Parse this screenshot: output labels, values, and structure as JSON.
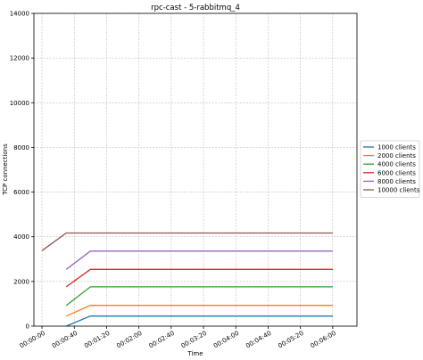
{
  "chart_data": {
    "type": "line",
    "title": "rpc-cast - 5-rabbitmq_4",
    "xlabel": "Time",
    "ylabel": "TCP connections",
    "xlim": [
      -10,
      390
    ],
    "ylim": [
      0,
      14000
    ],
    "x_ticks": [
      0,
      40,
      80,
      120,
      160,
      200,
      240,
      280,
      320,
      360
    ],
    "x_tick_labels": [
      "00:00:00",
      "00:00:40",
      "00:01:20",
      "00:02:00",
      "00:02:40",
      "00:03:20",
      "00:04:00",
      "00:04:40",
      "00:05:20",
      "00:06:00"
    ],
    "y_ticks": [
      0,
      2000,
      4000,
      6000,
      8000,
      10000,
      12000,
      14000
    ],
    "y_tick_labels": [
      "0",
      "2000",
      "4000",
      "6000",
      "8000",
      "10000",
      "12000",
      "14000"
    ],
    "grid": true,
    "legend_position": "outside-right",
    "series": [
      {
        "name": "1000 clients",
        "color": "#1f77b4",
        "x": [
          30,
          60,
          360
        ],
        "y": [
          0,
          450,
          450
        ]
      },
      {
        "name": "2000 clients",
        "color": "#ff7f0e",
        "x": [
          30,
          60,
          360
        ],
        "y": [
          450,
          930,
          930
        ]
      },
      {
        "name": "4000 clients",
        "color": "#2ca02c",
        "x": [
          30,
          60,
          360
        ],
        "y": [
          920,
          1760,
          1760
        ]
      },
      {
        "name": "6000 clients",
        "color": "#d62728",
        "x": [
          30,
          60,
          360
        ],
        "y": [
          1760,
          2540,
          2540
        ]
      },
      {
        "name": "8000 clients",
        "color": "#9467bd",
        "x": [
          30,
          60,
          360
        ],
        "y": [
          2540,
          3360,
          3360
        ]
      },
      {
        "name": "10000 clients",
        "color": "#8c564b",
        "x": [
          0,
          30,
          360
        ],
        "y": [
          3380,
          4170,
          4170
        ]
      }
    ]
  }
}
